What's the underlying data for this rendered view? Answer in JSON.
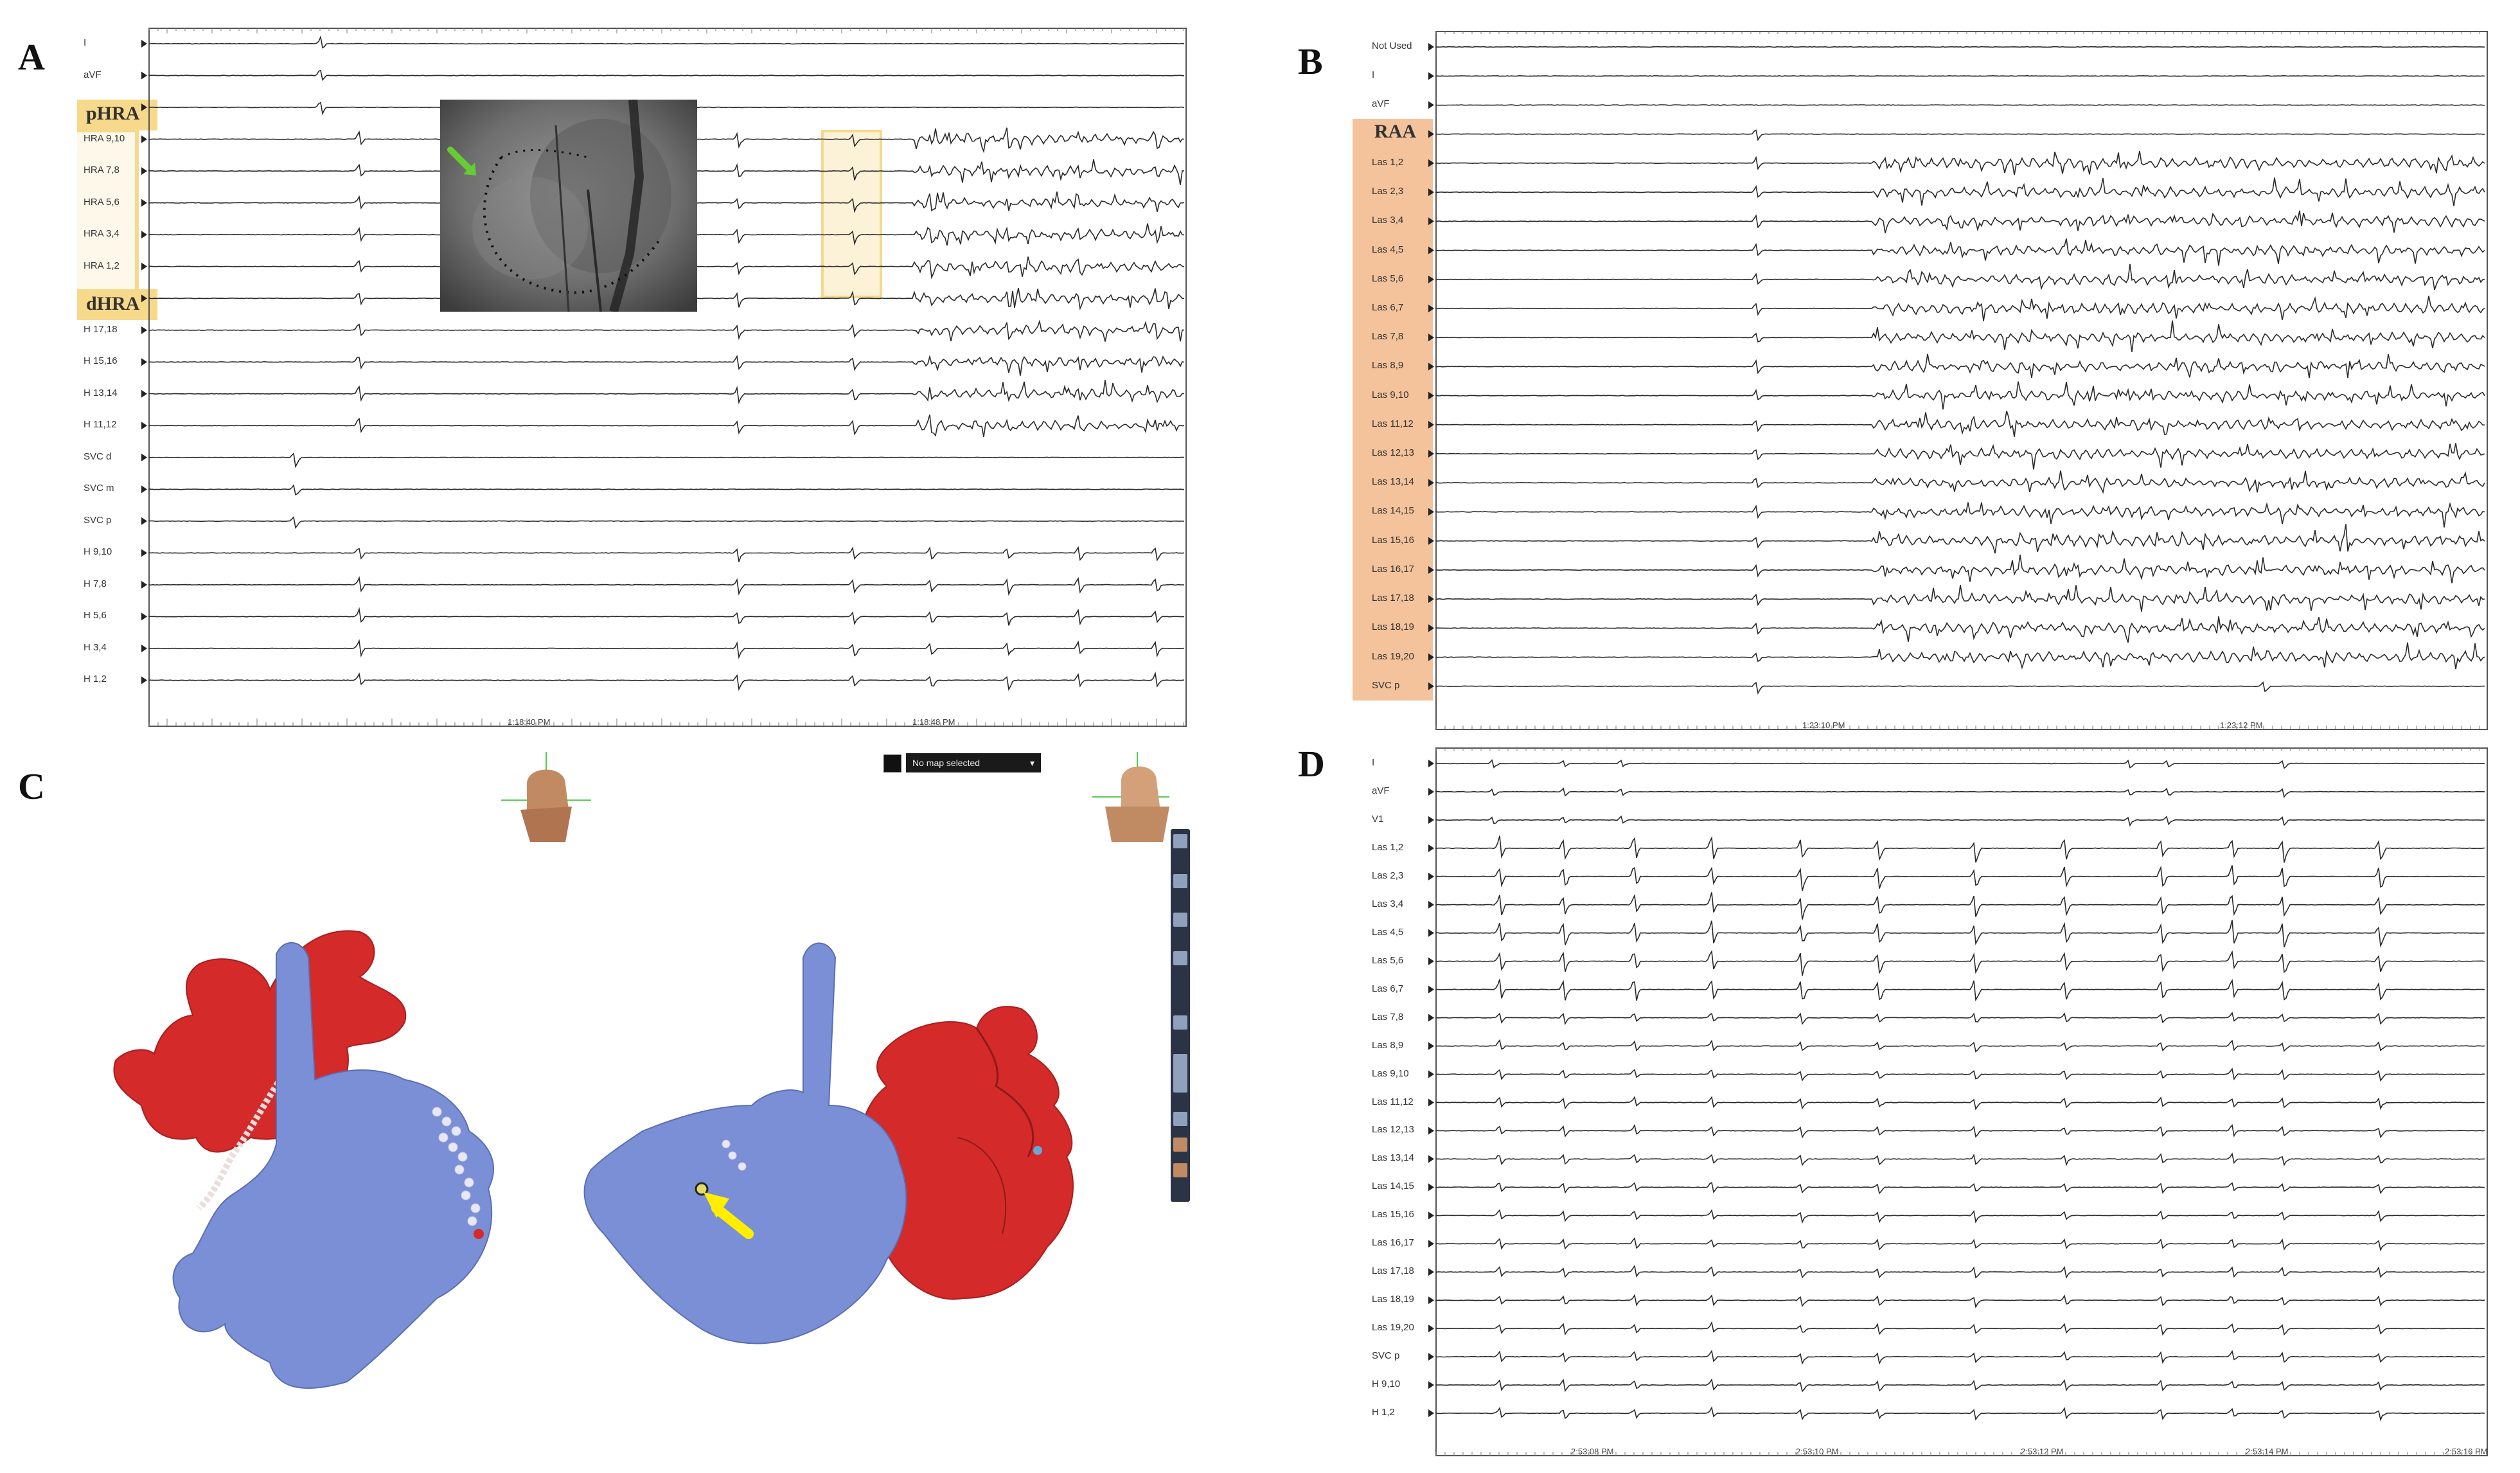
{
  "panels": {
    "A": {
      "letter": "A",
      "group_labels": {
        "proximal": "pHRA",
        "distal": "dHRA"
      },
      "channels": [
        "I",
        "aVF",
        "",
        "HRA 9,10",
        "HRA 7,8",
        "HRA 5,6",
        "HRA 3,4",
        "HRA 1,2",
        "",
        "H 17,18",
        "H 15,16",
        "H 13,14",
        "H 11,12",
        "SVC d",
        "SVC m",
        "SVC p",
        "H 9,10",
        "H 7,8",
        "H 5,6",
        "H 3,4",
        "H 1,2"
      ],
      "time_labels": [
        "1:18:40 PM",
        "1:18:48 PM"
      ]
    },
    "B": {
      "letter": "B",
      "group_labels": {
        "main": "RAA"
      },
      "channels": [
        "Not Used",
        "I",
        "aVF",
        "",
        "Las 1,2",
        "Las 2,3",
        "Las 3,4",
        "Las 4,5",
        "Las 5,6",
        "Las 6,7",
        "Las 7,8",
        "Las 8,9",
        "Las 9,10",
        "Las 11,12",
        "Las 12,13",
        "Las 13,14",
        "Las 14,15",
        "Las 15,16",
        "Las 16,17",
        "Las 17,18",
        "Las 18,19",
        "Las 19,20",
        "SVC p"
      ],
      "time_labels": [
        "1:23:10 PM",
        "1:23:12 PM"
      ]
    },
    "C": {
      "letter": "C",
      "map_dropdown": "No map selected"
    },
    "D": {
      "letter": "D",
      "channels": [
        "I",
        "aVF",
        "V1",
        "Las 1,2",
        "Las 2,3",
        "Las 3,4",
        "Las 4,5",
        "Las 5,6",
        "Las 6,7",
        "Las 7,8",
        "Las 8,9",
        "Las 9,10",
        "Las 11,12",
        "Las 12,13",
        "Las 13,14",
        "Las 14,15",
        "Las 15,16",
        "Las 16,17",
        "Las 17,18",
        "Las 18,19",
        "Las 19,20",
        "SVC p",
        "H 9,10",
        "H 1,2"
      ],
      "time_labels": [
        "2:53:08 PM",
        "2:53:10 PM",
        "2:53:12 PM",
        "2:53:14 PM",
        "2:53:16 PM"
      ]
    }
  },
  "colors": {
    "trace": "#2a2a2a",
    "highlight_yellow": "#f7d98c",
    "highlight_orange": "#f2b98a",
    "left_atrium": "#7b8fd6",
    "right_atrium": "#d42a2a",
    "ablation_tag": "#e8e8f5",
    "arrow_green": "#66cc33",
    "arrow_yellow": "#ffee00"
  },
  "icons": [
    "head-orientation-icon",
    "arrow-indicator-icon"
  ]
}
